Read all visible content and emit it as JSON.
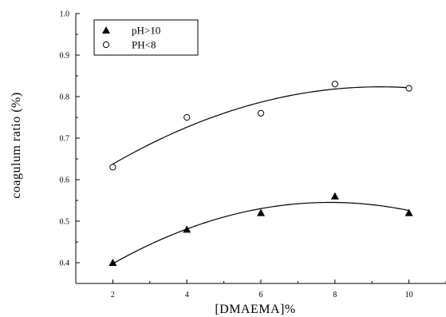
{
  "chart_data": {
    "type": "scatter",
    "title": "",
    "xlabel": "[DMAEMA]%",
    "ylabel": "coagulum ratio (%)",
    "xlim": [
      1,
      11
    ],
    "ylim": [
      0.35,
      1.0
    ],
    "x_ticks": [
      2,
      4,
      6,
      8,
      10
    ],
    "y_ticks": [
      0.4,
      0.5,
      0.6,
      0.7,
      0.8,
      0.9,
      1.0
    ],
    "x_tick_labels": [
      "2",
      "4",
      "6",
      "8",
      "10"
    ],
    "y_tick_labels": [
      "0.4",
      "0.5",
      "0.6",
      "0.7",
      "0.8",
      "0.9",
      "1.0"
    ],
    "grid": false,
    "legend_position": "top-left",
    "series": [
      {
        "name": "pH>10",
        "marker": "filled-triangle",
        "color": "#000000",
        "x": [
          2,
          4,
          6,
          8,
          10
        ],
        "y": [
          0.4,
          0.48,
          0.52,
          0.56,
          0.52
        ],
        "fit": "quadratic"
      },
      {
        "name": "PH<8",
        "marker": "open-circle",
        "color": "#000000",
        "x": [
          2,
          4,
          6,
          8,
          10
        ],
        "y": [
          0.63,
          0.75,
          0.76,
          0.83,
          0.82
        ],
        "fit": "quadratic"
      }
    ]
  }
}
